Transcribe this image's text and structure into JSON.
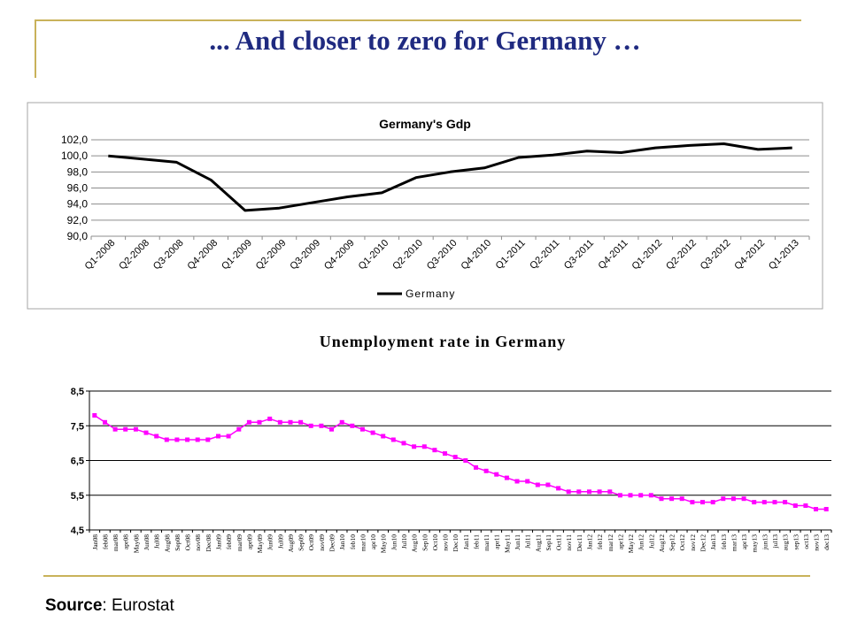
{
  "slide": {
    "title": "... And closer to zero for Germany …",
    "source_label": "Source",
    "source_value": ": Eurostat"
  },
  "colors": {
    "accent_gold": "#c9b25a",
    "title_blue": "#1f2a80",
    "gdp_line": "#000000",
    "unemployment_line": "#ff00ff"
  },
  "chart_data": [
    {
      "type": "line",
      "title": "Germany's Gdp",
      "xlabel": "",
      "ylabel": "",
      "categories": [
        "Q1-2008",
        "Q2-2008",
        "Q3-2008",
        "Q4-2008",
        "Q1-2009",
        "Q2-2009",
        "Q3-2009",
        "Q4-2009",
        "Q1-2010",
        "Q2-2010",
        "Q3-2010",
        "Q4-2010",
        "Q1-2011",
        "Q2-2011",
        "Q3-2011",
        "Q4-2011",
        "Q1-2012",
        "Q2-2012",
        "Q3-2012",
        "Q4-2012",
        "Q1-2013"
      ],
      "series": [
        {
          "name": "Germany",
          "values": [
            100.0,
            99.6,
            99.2,
            97.0,
            93.2,
            93.5,
            94.2,
            94.9,
            95.4,
            97.3,
            98.0,
            98.5,
            99.8,
            100.1,
            100.6,
            100.4,
            101.0,
            101.3,
            101.5,
            100.8,
            101.0
          ]
        }
      ],
      "ylim": [
        90,
        102
      ],
      "yticks": [
        "102,0",
        "100,0",
        "98,0",
        "96,0",
        "94,0",
        "92,0",
        "90,0"
      ],
      "grid": true,
      "legend": "bottom-center"
    },
    {
      "type": "line",
      "title": "Unemployment rate in Germany",
      "xlabel": "",
      "ylabel": "",
      "categories": [
        "Jan08",
        "feb08",
        "mar08",
        "apr08",
        "May08",
        "Jun08",
        "Jul08",
        "Aug08",
        "Sep08",
        "Oct08",
        "nov08",
        "Dec08",
        "Jan09",
        "feb09",
        "mar09",
        "apr09",
        "May09",
        "Jun09",
        "Jul09",
        "Aug09",
        "Sep09",
        "Oct09",
        "nov09",
        "Dec09",
        "Jan10",
        "feb10",
        "mar10",
        "apr10",
        "May10",
        "Jun10",
        "Jul10",
        "Aug10",
        "Sep10",
        "Oct10",
        "nov10",
        "Dec10",
        "Jan11",
        "feb11",
        "mar11",
        "apr11",
        "May11",
        "Jun11",
        "Jul11",
        "Aug11",
        "Sep11",
        "Oct11",
        "nov11",
        "Dec11",
        "Jan12",
        "feb12",
        "mar12",
        "apr12",
        "May12",
        "Jun12",
        "Jul12",
        "Aug12",
        "Sep12",
        "Oct12",
        "nov12",
        "Dec12",
        "Jan13",
        "feb13",
        "mar13",
        "apr13",
        "may13",
        "jun13",
        "jul13",
        "aug13",
        "sep13",
        "oct13",
        "nov13",
        "dec13"
      ],
      "series": [
        {
          "name": "",
          "values": [
            7.8,
            7.6,
            7.4,
            7.4,
            7.4,
            7.3,
            7.2,
            7.1,
            7.1,
            7.1,
            7.1,
            7.1,
            7.2,
            7.2,
            7.4,
            7.6,
            7.6,
            7.7,
            7.6,
            7.6,
            7.6,
            7.5,
            7.5,
            7.4,
            7.6,
            7.5,
            7.4,
            7.3,
            7.2,
            7.1,
            7.0,
            6.9,
            6.9,
            6.8,
            6.7,
            6.6,
            6.5,
            6.3,
            6.2,
            6.1,
            6.0,
            5.9,
            5.9,
            5.8,
            5.8,
            5.7,
            5.6,
            5.6,
            5.6,
            5.6,
            5.6,
            5.5,
            5.5,
            5.5,
            5.5,
            5.4,
            5.4,
            5.4,
            5.3,
            5.3,
            5.3,
            5.4,
            5.4,
            5.4,
            5.3,
            5.3,
            5.3,
            5.3,
            5.2,
            5.2,
            5.1,
            5.1
          ]
        }
      ],
      "ylim": [
        4.5,
        8.5
      ],
      "yticks": [
        "8,5",
        "7,5",
        "6,5",
        "5,5",
        "4,5"
      ],
      "grid": true,
      "legend": "none"
    }
  ]
}
